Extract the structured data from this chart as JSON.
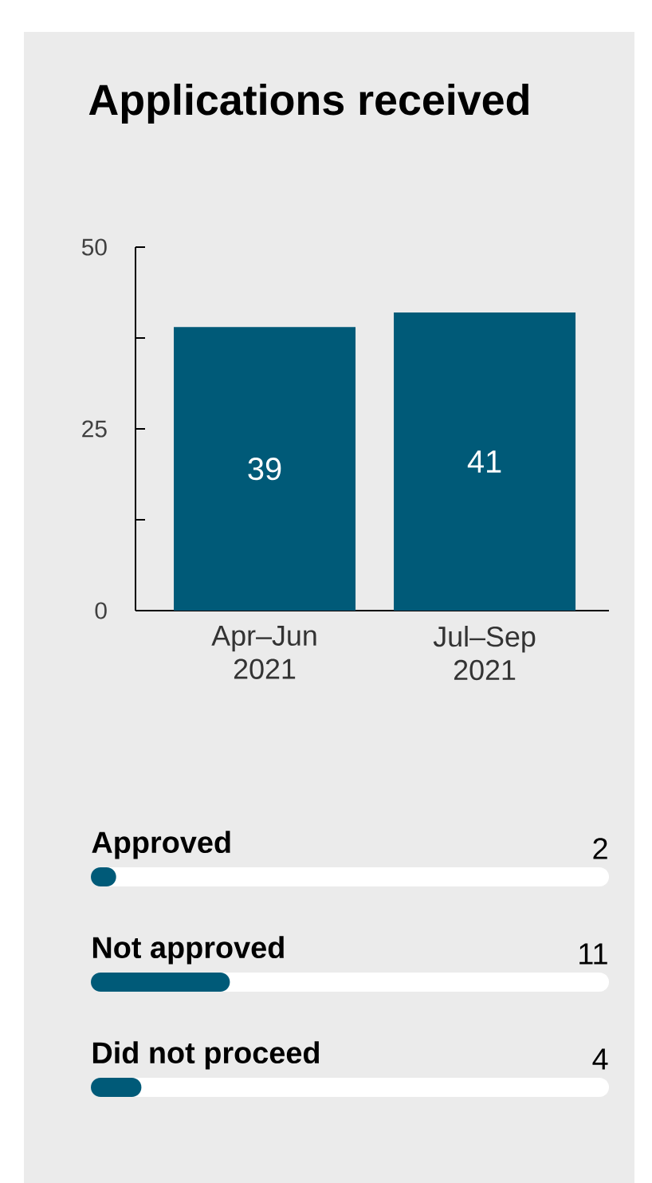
{
  "chart_data": [
    {
      "type": "bar",
      "title": "Applications received",
      "categories": [
        "Apr–Jun 2021",
        "Jul–Sep 2021"
      ],
      "values": [
        39,
        41
      ],
      "color": "#005a78",
      "ylim": [
        0,
        50
      ],
      "yticks": [
        0,
        {
          "value": 12.5,
          "label": null
        },
        25,
        {
          "value": 37.5,
          "label": null
        },
        50
      ],
      "data_labels": true
    },
    {
      "type": "bar",
      "orientation": "horizontal",
      "categories": [
        "Approved",
        "Not approved",
        "Did not proceed"
      ],
      "values": [
        2,
        11,
        4
      ],
      "color": "#005a78",
      "xlim": [
        0,
        41
      ],
      "data_labels": true
    }
  ]
}
